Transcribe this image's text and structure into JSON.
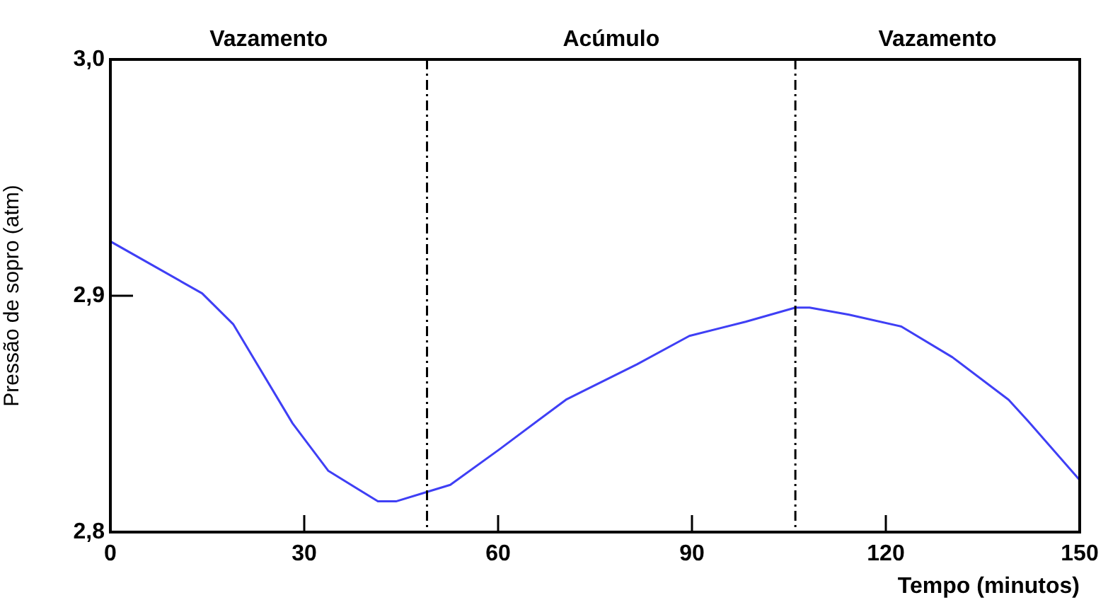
{
  "chart_data": {
    "type": "line",
    "xlabel": "Tempo (minutos)",
    "ylabel": "Pressão de sopro (atm)",
    "series": [
      {
        "color": "#3f3ff5",
        "x": [
          0,
          14.2,
          19,
          28.2,
          33.7,
          41.4,
          44.2,
          49,
          52.6,
          60.2,
          70.5,
          73.4,
          81.5,
          89.6,
          98.3,
          106,
          108.2,
          114.3,
          122.4,
          130.3,
          139,
          142,
          150
        ],
        "values": [
          2.923,
          2.901,
          2.888,
          2.846,
          2.826,
          2.813,
          2.813,
          2.817,
          2.82,
          2.835,
          2.856,
          2.86,
          2.871,
          2.883,
          2.889,
          2.895,
          2.895,
          2.892,
          2.887,
          2.874,
          2.856,
          2.847,
          2.822
        ]
      }
    ],
    "xlim": [
      0,
      150
    ],
    "xticks": [
      0,
      30,
      60,
      90,
      120,
      150
    ],
    "ylim": [
      2.8,
      3.0
    ],
    "yticks": [
      {
        "value": 2.8,
        "label": "2,8"
      },
      {
        "value": 2.9,
        "label": "2,9"
      },
      {
        "value": 3.0,
        "label": "3,0"
      }
    ],
    "ref_lines": [
      {
        "axis": "x",
        "value": 49,
        "color": "#000000",
        "line_style": "dashed"
      },
      {
        "axis": "x",
        "value": 106,
        "color": "#000000",
        "line_style": "dashed"
      }
    ],
    "annotations": [
      "Vazamento",
      "Acúmulo",
      "Vazamento"
    ],
    "grid": false,
    "legend": false,
    "marker": "none",
    "line_style": "solid"
  }
}
